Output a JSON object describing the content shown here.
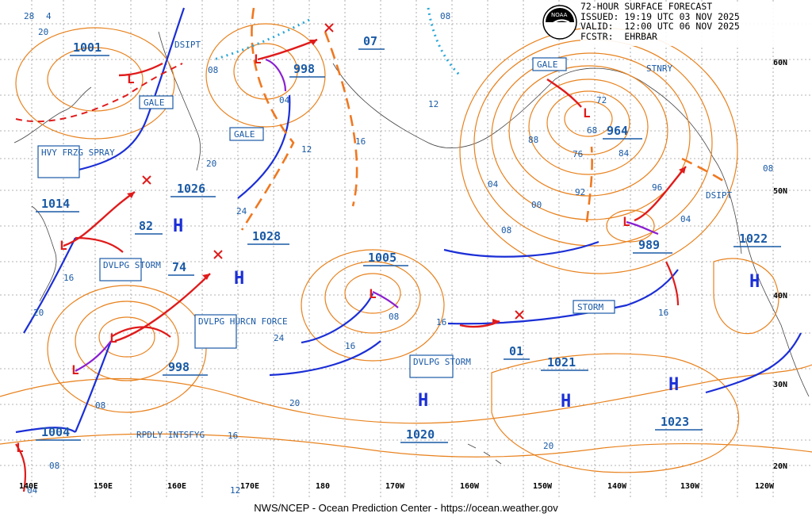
{
  "header": {
    "title": "72-HOUR SURFACE FORECAST",
    "issued": "ISSUED: 19:19 UTC 03 NOV 2025",
    "valid": "VALID:  12:00 UTC 06 NOV 2025",
    "forecaster": "FCSTR:  EHRBAR",
    "logo_label": "NOAA"
  },
  "footer": "NWS/NCEP - Ocean Prediction Center - https://ocean.weather.gov",
  "colors": {
    "isobar": "#e8821e",
    "warm_front": "#e01b1b",
    "cold_front": "#1b2fd6",
    "label": "#1a5aa6",
    "occluded": "#8a1fd0",
    "ice": "#2aa7d8"
  },
  "lon_labels": [
    "140E",
    "150E",
    "160E",
    "170E",
    "180",
    "170W",
    "160W",
    "150W",
    "140W",
    "130W",
    "120W"
  ],
  "lat_labels": [
    "60N",
    "50N",
    "40N",
    "30N",
    "20N"
  ],
  "pressure_boxes": [
    "1001",
    "1014",
    "1026",
    "998",
    "07",
    "1028",
    "1005",
    "964",
    "989",
    "1022",
    "1021",
    "1004",
    "1020",
    "1023",
    "998",
    "82",
    "74",
    "01"
  ],
  "isobar_labels": [
    "28",
    "4",
    "20",
    "08",
    "04",
    "12",
    "16",
    "20",
    "24",
    "04",
    "00",
    "08",
    "72",
    "68",
    "76",
    "88",
    "84",
    "92",
    "96",
    "04",
    "08",
    "12",
    "16",
    "20",
    "24",
    "16",
    "08",
    "16",
    "20",
    "08",
    "04",
    "12",
    "16",
    "20",
    "08",
    "16",
    "08"
  ],
  "warning_labels": [
    "GALE",
    "GALE",
    "GALE",
    "HVY FRZG SPRAY",
    "DVLPG STORM",
    "DVLPG HURCN FORCE",
    "DVLPG STORM",
    "STORM",
    "DSIPT",
    "DSIPT",
    "STNRY",
    "RPDLY INTSFYG"
  ],
  "highs": [
    "H",
    "H",
    "H",
    "H",
    "H",
    "H"
  ],
  "lows": [
    "L",
    "L",
    "L",
    "L",
    "L",
    "L",
    "L",
    "L",
    "L"
  ]
}
